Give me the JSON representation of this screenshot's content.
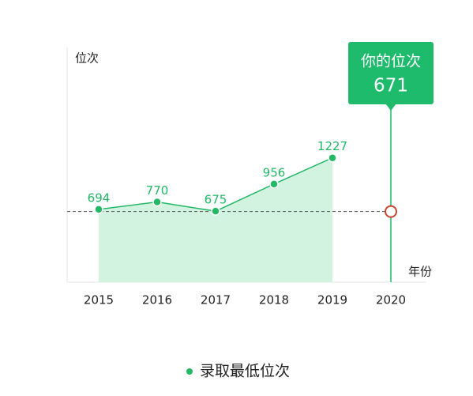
{
  "chart_data": {
    "type": "line",
    "y_label": "位次",
    "x_label": "年份",
    "categories": [
      "2015",
      "2016",
      "2017",
      "2018",
      "2019",
      "2020"
    ],
    "series": [
      {
        "name": "录取最低位次",
        "color": "#22b866",
        "values": [
          694,
          770,
          675,
          956,
          1227,
          null
        ]
      }
    ],
    "area_color": "#d3f3e1",
    "ylim": [
      -60,
      2370
    ],
    "reference": {
      "label": "你的位次",
      "value": 671,
      "color": "#1dbb6b",
      "marker_color": "#c8442f"
    }
  }
}
